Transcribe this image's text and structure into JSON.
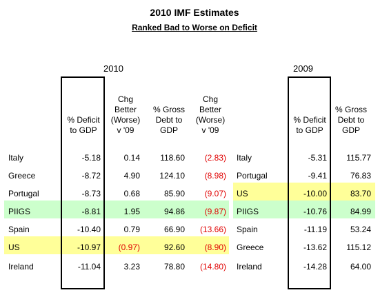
{
  "title": "2010 IMF Estimates",
  "subtitle": "Ranked Bad to Worse on Deficit",
  "left": {
    "year": "2010",
    "headers": {
      "deficit": [
        "% Deficit",
        "to GDP"
      ],
      "chg_deficit": [
        "Chg",
        "Better",
        "(Worse)",
        "v '09"
      ],
      "debt": [
        "% Gross",
        "Debt to",
        "GDP"
      ],
      "chg_debt": [
        "Chg",
        "Better",
        "(Worse)",
        "v '09"
      ]
    },
    "rows": [
      {
        "country": "Italy",
        "deficit": "-5.18",
        "chg_deficit": "0.14",
        "chg_deficit_neg": false,
        "debt": "118.60",
        "chg_debt": "(2.83)",
        "highlight": ""
      },
      {
        "country": "Greece",
        "deficit": "-8.72",
        "chg_deficit": "4.90",
        "chg_deficit_neg": false,
        "debt": "124.10",
        "chg_debt": "(8.98)",
        "highlight": ""
      },
      {
        "country": "Portugal",
        "deficit": "-8.73",
        "chg_deficit": "0.68",
        "chg_deficit_neg": false,
        "debt": "85.90",
        "chg_debt": "(9.07)",
        "highlight": ""
      },
      {
        "country": "PIIGS",
        "deficit": "-8.81",
        "chg_deficit": "1.95",
        "chg_deficit_neg": false,
        "debt": "94.86",
        "chg_debt": "(9.87)",
        "highlight": "green"
      },
      {
        "country": "Spain",
        "deficit": "-10.40",
        "chg_deficit": "0.79",
        "chg_deficit_neg": false,
        "debt": "66.90",
        "chg_debt": "(13.66)",
        "highlight": ""
      },
      {
        "country": "US",
        "deficit": "-10.97",
        "chg_deficit": "(0.97)",
        "chg_deficit_neg": true,
        "debt": "92.60",
        "chg_debt": "(8.90)",
        "highlight": "yellow"
      },
      {
        "country": "Ireland",
        "deficit": "-11.04",
        "chg_deficit": "3.23",
        "chg_deficit_neg": false,
        "debt": "78.80",
        "chg_debt": "(14.80)",
        "highlight": ""
      }
    ]
  },
  "right": {
    "year": "2009",
    "headers": {
      "deficit": [
        "% Deficit",
        "to GDP"
      ],
      "debt": [
        "% Gross",
        "Debt to",
        "GDP"
      ]
    },
    "rows": [
      {
        "country": "Italy",
        "deficit": "-5.31",
        "debt": "115.77",
        "highlight": ""
      },
      {
        "country": "Portugal",
        "deficit": "-9.41",
        "debt": "76.83",
        "highlight": ""
      },
      {
        "country": "US",
        "deficit": "-10.00",
        "debt": "83.70",
        "highlight": "yellow"
      },
      {
        "country": "PIIGS",
        "deficit": "-10.76",
        "debt": "84.99",
        "highlight": "green"
      },
      {
        "country": "Spain",
        "deficit": "-11.19",
        "debt": "53.24",
        "highlight": ""
      },
      {
        "country": "Greece",
        "deficit": "-13.62",
        "debt": "115.12",
        "highlight": ""
      },
      {
        "country": "Ireland",
        "deficit": "-14.28",
        "debt": "64.00",
        "highlight": ""
      }
    ]
  },
  "colors": {
    "negative": "#e00000",
    "highlight_green": "#ccffcc",
    "highlight_yellow": "#ffff99"
  }
}
